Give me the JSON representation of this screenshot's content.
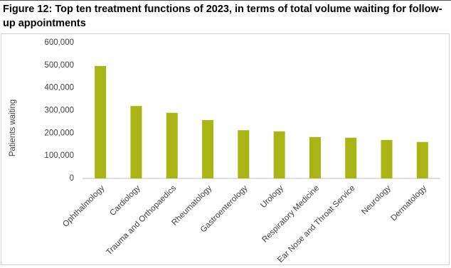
{
  "chart_data": {
    "type": "bar",
    "title": "Figure 12: Top ten treatment functions of 2023, in terms of total volume waiting for follow-up appointments",
    "y_label": "Patients waiting",
    "categories": [
      "Ophthalmology",
      "Cardiology",
      "Trauma and Orthopaedics",
      "Rheumatology",
      "Gastroenterology",
      "Urology",
      "Respiratory Medicine",
      "Ear Nose and Throat Service",
      "Neurology",
      "Dermatology"
    ],
    "values": [
      497000,
      320000,
      290000,
      258000,
      213000,
      208000,
      183000,
      180000,
      170000,
      161000
    ],
    "color": "#a9b515",
    "ylim": [
      0,
      600000
    ],
    "yticks": [
      0,
      {
        "value": 100000,
        "label": "100,000"
      },
      {
        "value": 200000,
        "label": "200,000"
      },
      {
        "value": 300000,
        "label": "300,000"
      },
      {
        "value": 400000,
        "label": "400,000"
      },
      {
        "value": 500000,
        "label": "500,000"
      },
      {
        "value": 600000,
        "label": "600,000"
      }
    ],
    "grid": false
  }
}
